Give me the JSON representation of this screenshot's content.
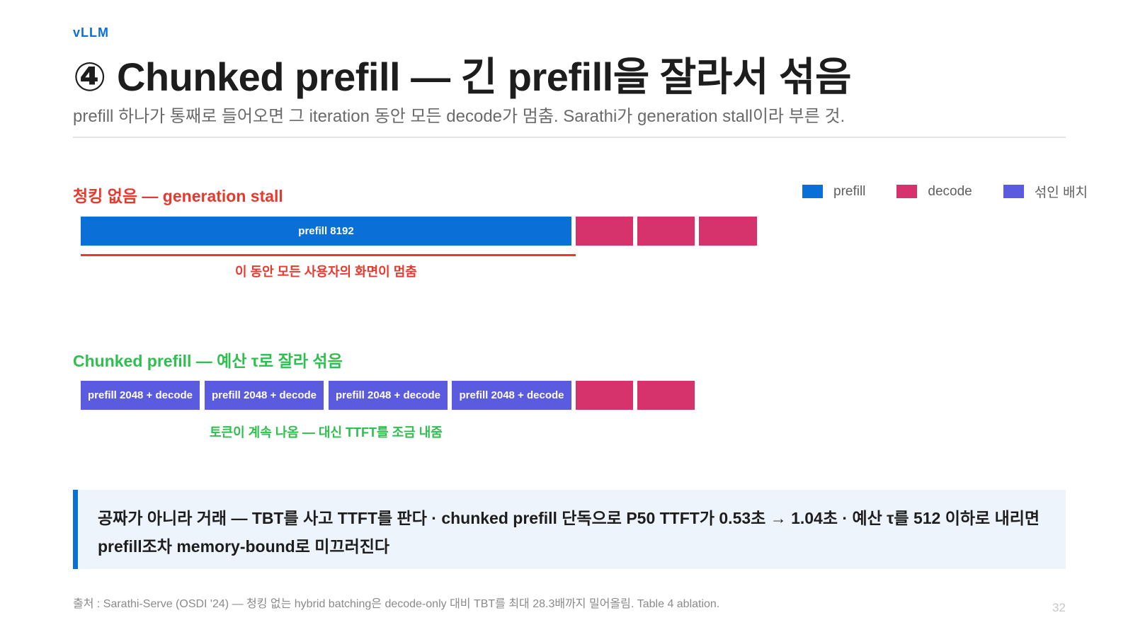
{
  "brand": "vLLM",
  "title": "④ Chunked prefill — 긴 prefill을 잘라서 섞음",
  "subtitle": "prefill 하나가 통째로 들어오면 그 iteration 동안 모든 decode가 멈춤. Sarathi가 generation stall이라 부른 것.",
  "colors": {
    "accent": "#0b6fd8",
    "prefill": "#0b6fd8",
    "decode": "#d6336c",
    "mixed": "#5b5be0",
    "stall_red": "#e8392f",
    "chunked_green": "#2fbf4f",
    "callout_bg": "#eef4fc"
  },
  "legend": [
    {
      "label": "prefill",
      "color": "#0b6fd8"
    },
    {
      "label": "decode",
      "color": "#d6336c"
    },
    {
      "label": "섞인 배치",
      "color": "#5b5be0"
    }
  ],
  "no_chunk": {
    "label": "청킹 없음 — generation stall",
    "prefill_label": "prefill 8192",
    "decode_steps": 3,
    "note": "이 동안 모든 사용자의 화면이 멈춤"
  },
  "chunked": {
    "label": "Chunked prefill — 예산 τ로 잘라 섞음",
    "mixed_batches": [
      "prefill 2048 + decode",
      "prefill 2048 + decode",
      "prefill 2048 + decode",
      "prefill 2048 + decode"
    ],
    "decode_steps": 2,
    "note": "토큰이 계속 나옴 — 대신 TTFT를 조금 내줌"
  },
  "callout": "공짜가 아니라 거래 — TBT를 사고 TTFT를 판다 · chunked prefill 단독으로 P50 TTFT가 0.53초 → 1.04초 · 예산 τ를 512 이하로 내리면 prefill조차 memory-bound로 미끄러진다",
  "source": "출처 : Sarathi-Serve (OSDI '24) — 청킹 없는 hybrid batching은 decode-only 대비 TBT를 최대 28.3배까지 밀어올림. Table 4 ablation.",
  "page_number": "32"
}
